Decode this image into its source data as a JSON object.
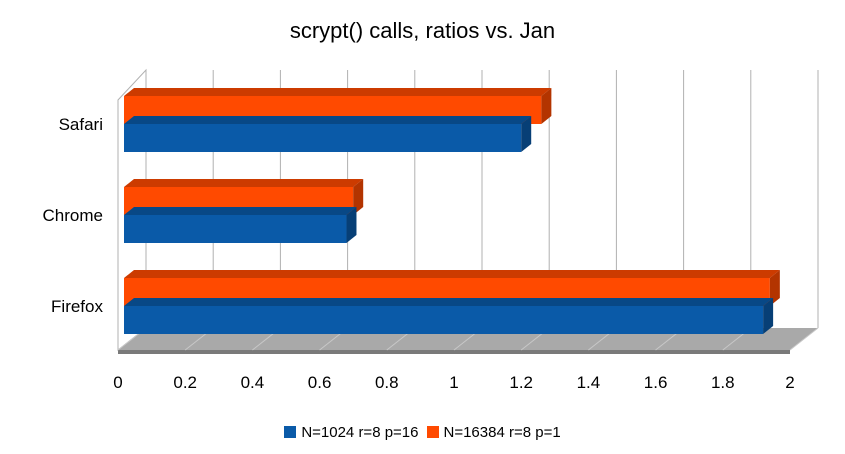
{
  "chart_data": {
    "type": "bar",
    "orientation": "horizontal",
    "title": "scrypt() calls, ratios vs. Jan",
    "xlabel": "",
    "ylabel": "",
    "categories": [
      "Firefox",
      "Chrome",
      "Safari"
    ],
    "series": [
      {
        "name": "N=1024 r=8 p=16",
        "values": [
          1.92,
          0.68,
          1.2
        ],
        "color": "#0a5aa8"
      },
      {
        "name": "N=16384 r=8 p=1",
        "values": [
          1.94,
          0.7,
          1.26
        ],
        "color": "#ff4a00"
      }
    ],
    "xlim": [
      0,
      2
    ],
    "xticks": [
      "0",
      "0.2",
      "0.4",
      "0.6",
      "0.8",
      "1",
      "1.2",
      "1.4",
      "1.6",
      "1.8",
      "2"
    ],
    "grid": true,
    "legend_position": "bottom",
    "style": "3d"
  }
}
